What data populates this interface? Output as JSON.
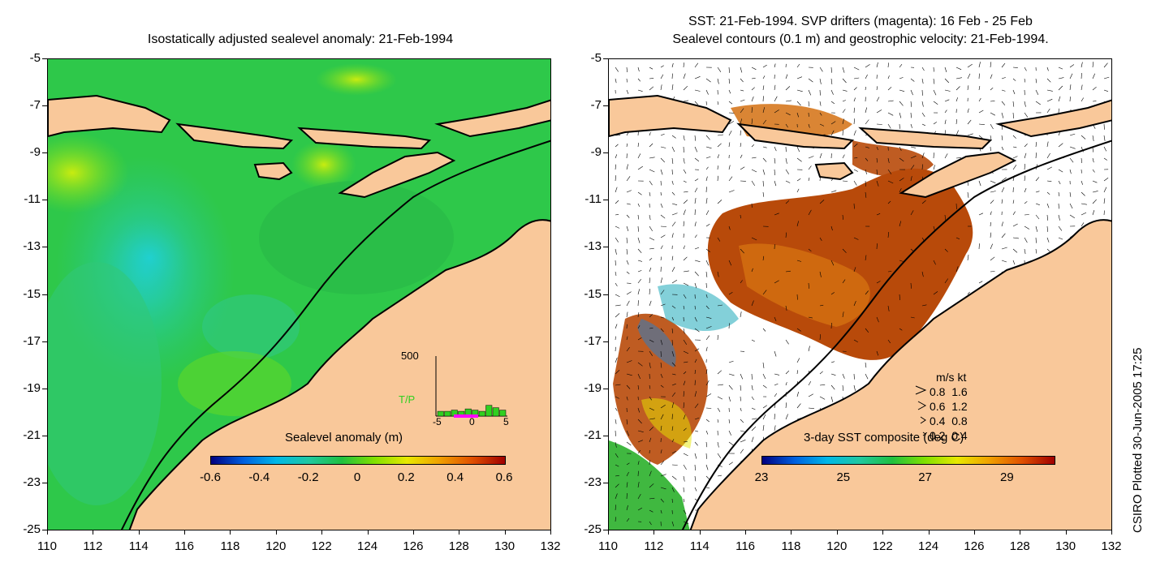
{
  "left_panel": {
    "title": "Isostatically adjusted sealevel anomaly: 21-Feb-1994",
    "colorbar": {
      "label": "Sealevel anomaly (m)",
      "ticks": [
        "-0.6",
        "-0.4",
        "-0.2",
        "0",
        "0.2",
        "0.4",
        "0.6"
      ],
      "colors": [
        "#000080",
        "#0060e0",
        "#00b8e8",
        "#20c8a0",
        "#20c040",
        "#80e000",
        "#e8e800",
        "#f0a000",
        "#e05000",
        "#a00000"
      ]
    },
    "inset": {
      "y_max_label": "500",
      "series_label": "T/P",
      "x_ticks": [
        "-5",
        "0",
        "5"
      ],
      "bar_values": [
        40,
        40,
        50,
        40,
        60,
        50,
        40,
        90,
        70,
        50
      ]
    }
  },
  "right_panel": {
    "title_line1": "SST: 21-Feb-1994. SVP drifters (magenta): 16 Feb - 25 Feb",
    "title_line2": "Sealevel contours (0.1 m) and geostrophic velocity: 21-Feb-1994.",
    "colorbar": {
      "label": "3-day SST composite (deg C)",
      "ticks": [
        "23",
        "25",
        "27",
        "29"
      ],
      "colors": [
        "#000080",
        "#0060e0",
        "#00b8e8",
        "#20c8a0",
        "#20c040",
        "#80e000",
        "#e8e800",
        "#f0a000",
        "#e05000",
        "#a00000"
      ]
    },
    "velocity_legend": {
      "header": "m/s  kt",
      "rows": [
        {
          "ms": "0.8",
          "kt": "1.6"
        },
        {
          "ms": "0.6",
          "kt": "1.2"
        },
        {
          "ms": "0.4",
          "kt": "0.8"
        },
        {
          "ms": "0.2",
          "kt": "0.4"
        }
      ]
    }
  },
  "axes": {
    "y_ticks": [
      "-5",
      "-7",
      "-9",
      "-11",
      "-13",
      "-15",
      "-17",
      "-19",
      "-21",
      "-23",
      "-25"
    ],
    "x_ticks": [
      "110",
      "112",
      "114",
      "116",
      "118",
      "120",
      "122",
      "124",
      "126",
      "128",
      "130",
      "132"
    ]
  },
  "credit": "CSIRO Plotted 30-Jun-2005 17:25",
  "colors": {
    "land": "#f9c89a",
    "ocean": "#2ec84a",
    "ocean_light": "#30c890",
    "sst_warm": "#b84a0a",
    "sst_orange": "#d47010"
  }
}
